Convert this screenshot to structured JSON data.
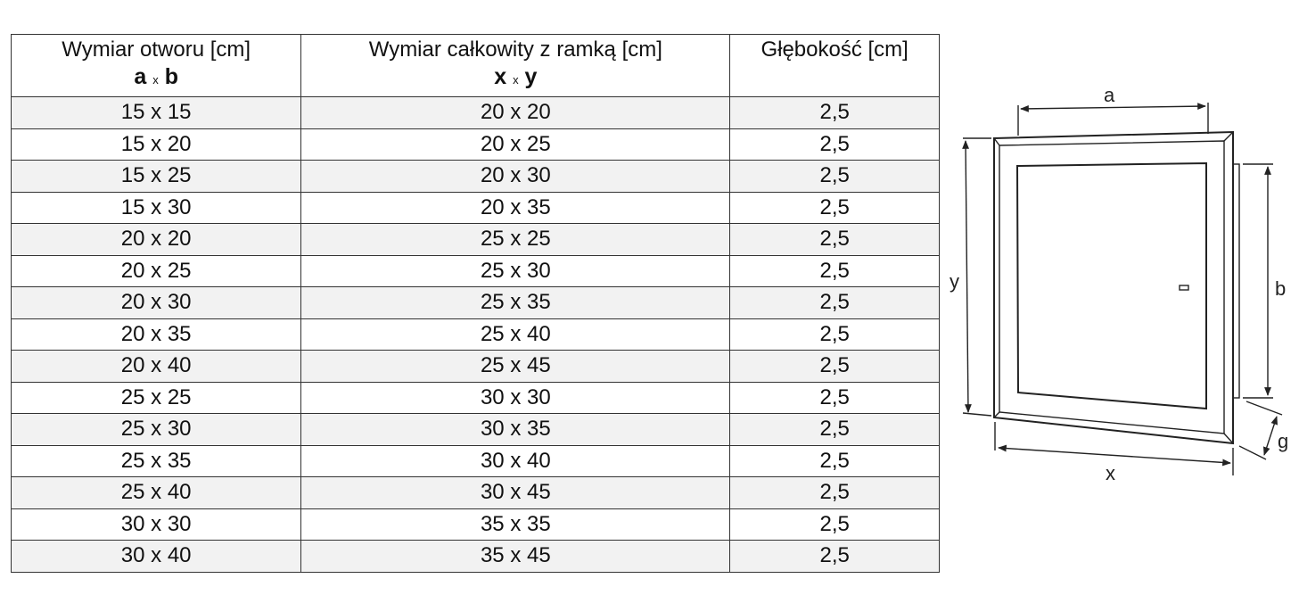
{
  "table": {
    "headers": [
      {
        "label": "Wymiar otworu [cm]",
        "sub_a": "a",
        "sub_x": "x",
        "sub_b": "b"
      },
      {
        "label": "Wymiar całkowity z ramką [cm]",
        "sub_a": "x",
        "sub_x": "x",
        "sub_b": "y"
      },
      {
        "label": "Głębokość [cm]"
      }
    ],
    "rows": [
      [
        "15 x 15",
        "20 x 20",
        "2,5"
      ],
      [
        "15 x 20",
        "20 x 25",
        "2,5"
      ],
      [
        "15 x 25",
        "20 x 30",
        "2,5"
      ],
      [
        "15 x 30",
        "20 x 35",
        "2,5"
      ],
      [
        "20 x 20",
        "25 x 25",
        "2,5"
      ],
      [
        "20 x 25",
        "25 x 30",
        "2,5"
      ],
      [
        "20 x 30",
        "25 x 35",
        "2,5"
      ],
      [
        "20 x 35",
        "25 x 40",
        "2,5"
      ],
      [
        "20 x 40",
        "25 x 45",
        "2,5"
      ],
      [
        "25 x 25",
        "30 x 30",
        "2,5"
      ],
      [
        "25 x 30",
        "30 x 35",
        "2,5"
      ],
      [
        "25 x 35",
        "30 x 40",
        "2,5"
      ],
      [
        "25 x 40",
        "30 x 45",
        "2,5"
      ],
      [
        "30 x 30",
        "35 x 35",
        "2,5"
      ],
      [
        "30 x 40",
        "35 x 45",
        "2,5"
      ]
    ],
    "shade_color": "#f2f2f2"
  },
  "diagram": {
    "labels": {
      "a": "a",
      "b": "b",
      "x": "x",
      "y": "y",
      "g": "g"
    }
  }
}
